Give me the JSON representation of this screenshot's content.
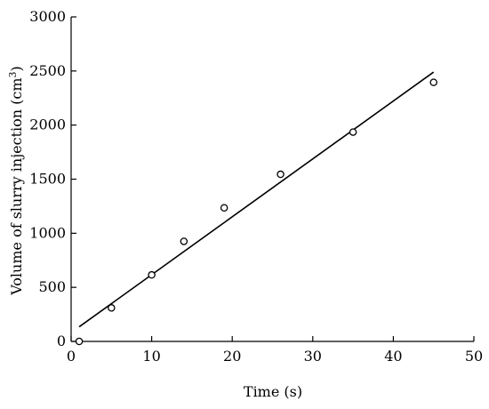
{
  "chart_data": {
    "type": "scatter",
    "xlabel": "Time (s)",
    "ylabel_main": "Volume of slurry injection (cm",
    "ylabel_sup": "3",
    "ylabel_close": ")",
    "xlim": [
      0,
      50
    ],
    "ylim": [
      0,
      3000
    ],
    "x_ticks": [
      0,
      10,
      20,
      30,
      40,
      50
    ],
    "y_ticks": [
      0,
      500,
      1000,
      1500,
      2000,
      2500,
      3000
    ],
    "grid": false,
    "series": [
      {
        "marker": "open-circle",
        "x": [
          1,
          5,
          10,
          14,
          19,
          26,
          35,
          45
        ],
        "y": [
          0,
          310,
          615,
          925,
          1235,
          1545,
          1935,
          2395
        ]
      }
    ],
    "fit_line": {
      "style": "solid",
      "x": [
        1,
        45
      ],
      "y": [
        135,
        2490
      ]
    }
  }
}
